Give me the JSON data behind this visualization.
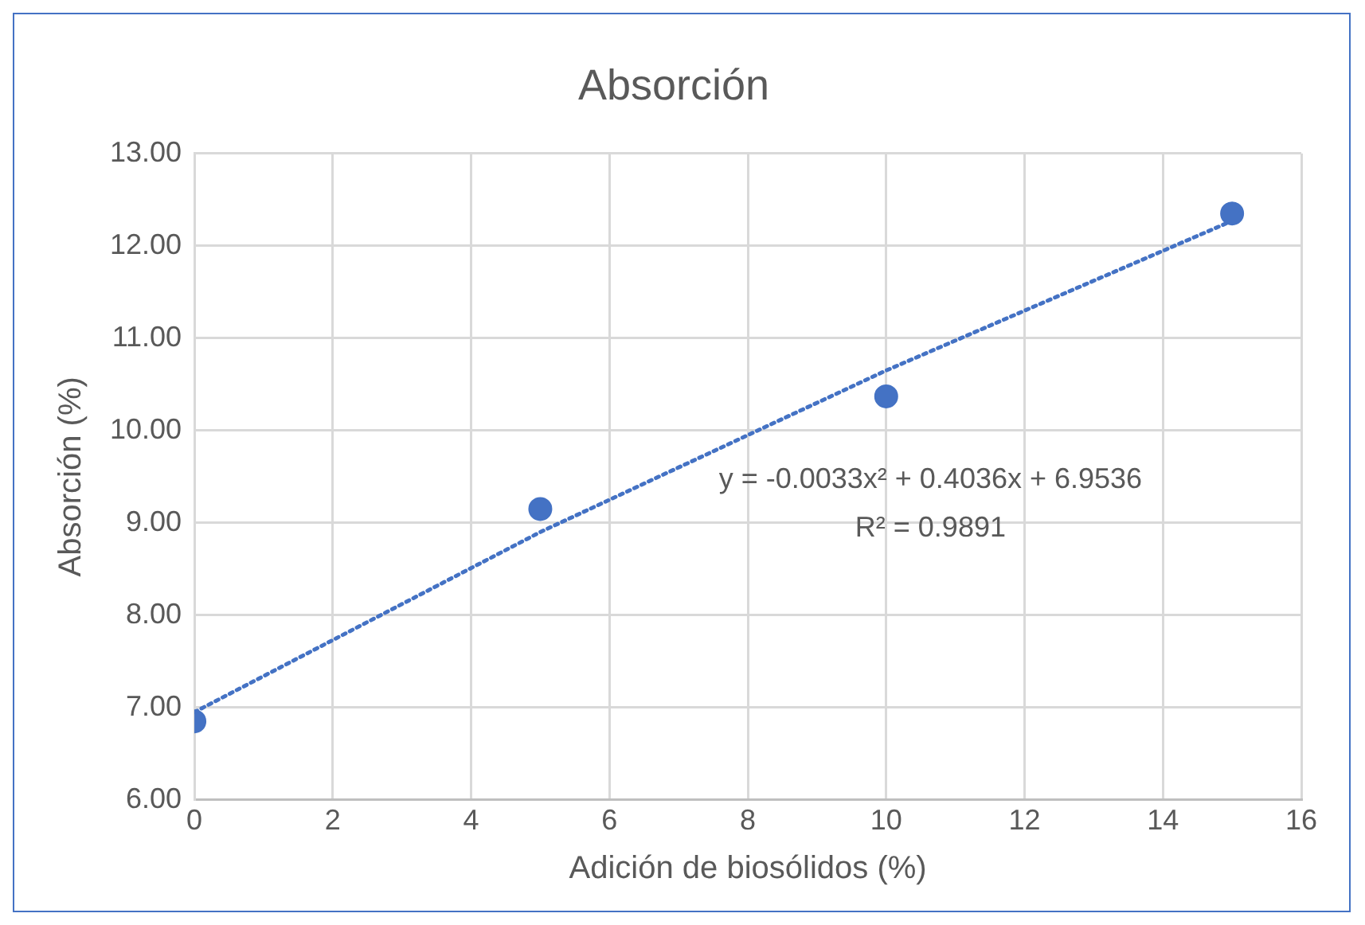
{
  "chart_data": {
    "type": "scatter",
    "title": "Absorción",
    "xlabel": "Adición de biosólidos (%)",
    "ylabel": "Absorción (%)",
    "x": [
      0,
      5,
      10,
      15
    ],
    "series": [
      {
        "color": "#4472c4",
        "values": [
          6.85,
          9.15,
          10.37,
          12.35
        ]
      },
      {
        "type": "line",
        "color": "#4472c4",
        "x": [
          0,
          5,
          10,
          15
        ],
        "values": [
          6.95,
          8.9,
          10.65,
          12.27
        ],
        "line_style": "dotted",
        "marker": "none"
      }
    ],
    "annotations": [
      "y = -0.0033x² + 0.4036x + 6.9536",
      "R² = 0.9891"
    ],
    "xlim": [
      0,
      16
    ],
    "xticks": [
      0,
      2,
      4,
      6,
      8,
      10,
      12,
      14,
      16
    ],
    "ylim": [
      6,
      13
    ],
    "yticks": [
      {
        "value": 6,
        "label": "6.00"
      },
      {
        "value": 7,
        "label": "7.00"
      },
      {
        "value": 8,
        "label": "8.00"
      },
      {
        "value": 9,
        "label": "9.00"
      },
      {
        "value": 10,
        "label": "10.00"
      },
      {
        "value": 11,
        "label": "11.00"
      },
      {
        "value": 12,
        "label": "12.00"
      },
      {
        "value": 13,
        "label": "13.00"
      }
    ],
    "grid": true,
    "legend": false
  }
}
